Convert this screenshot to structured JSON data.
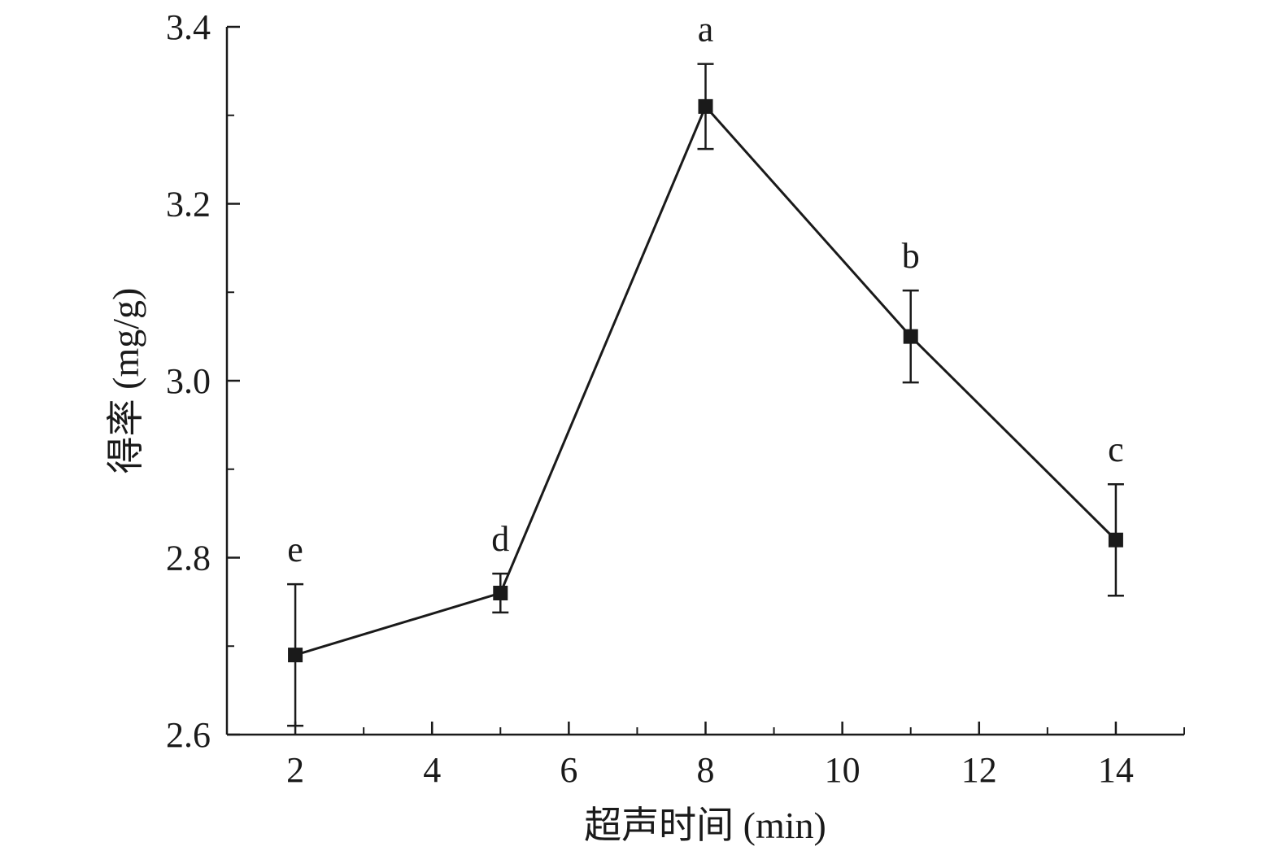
{
  "chart_data": {
    "type": "line",
    "title": "",
    "xlabel": "超声时间 (min)",
    "ylabel": "得率 (mg/g)",
    "xlim": [
      1,
      15
    ],
    "ylim": [
      2.6,
      3.4
    ],
    "x_ticks": [
      2,
      4,
      6,
      8,
      10,
      12,
      14
    ],
    "x_tick_labels": [
      "2",
      "4",
      "6",
      "8",
      "10",
      "12",
      "14"
    ],
    "y_ticks": [
      2.6,
      2.8,
      3.0,
      3.2,
      3.4
    ],
    "y_tick_labels": [
      "2.6",
      "2.8",
      "3.0",
      "3.2",
      "3.4"
    ],
    "grid": false,
    "series": [
      {
        "x": [
          2,
          5,
          8,
          11,
          14
        ],
        "y": [
          2.69,
          2.76,
          3.31,
          3.05,
          2.82
        ],
        "error": [
          0.08,
          0.022,
          0.048,
          0.052,
          0.063
        ],
        "labels": [
          "e",
          "d",
          "a",
          "b",
          "c"
        ],
        "color": "#1a1a1a",
        "marker": "square"
      }
    ]
  }
}
